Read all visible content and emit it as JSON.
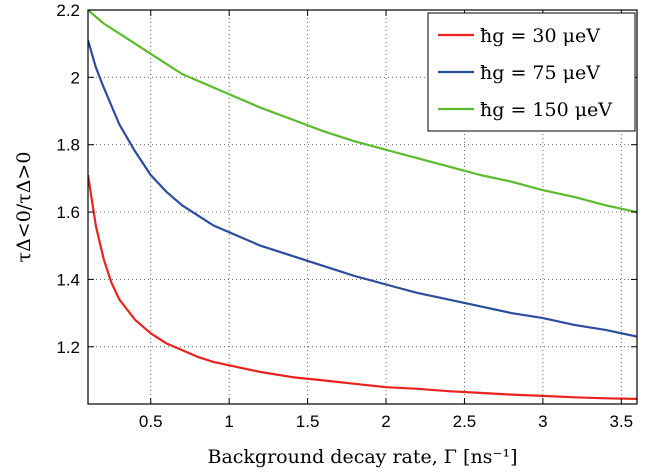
{
  "chart_data": {
    "type": "line",
    "title": "",
    "xlabel": "Background decay rate, Γ [ns⁻¹]",
    "ylabel": "τΔ<0/τΔ>0",
    "xlim": [
      0.1,
      3.6
    ],
    "ylim": [
      1.03,
      2.2
    ],
    "xticks": [
      0.5,
      1,
      1.5,
      2,
      2.5,
      3,
      3.5
    ],
    "xtick_labels": [
      "0.5",
      "1",
      "1.5",
      "2",
      "2.5",
      "3",
      "3.5"
    ],
    "yticks": [
      1.2,
      1.4,
      1.6,
      1.8,
      2,
      2.2
    ],
    "ytick_labels": [
      "1.2",
      "1.4",
      "1.6",
      "1.8",
      "2",
      "2.2"
    ],
    "grid": true,
    "legend_position": "top-right",
    "series": [
      {
        "name": "ħg = 30 μeV",
        "color": "#e8231f",
        "x": [
          0.1,
          0.15,
          0.2,
          0.25,
          0.3,
          0.4,
          0.5,
          0.6,
          0.7,
          0.8,
          0.9,
          1.0,
          1.2,
          1.4,
          1.6,
          1.8,
          2.0,
          2.2,
          2.4,
          2.6,
          2.8,
          3.0,
          3.2,
          3.4,
          3.6
        ],
        "y": [
          1.71,
          1.56,
          1.46,
          1.39,
          1.34,
          1.28,
          1.24,
          1.21,
          1.19,
          1.17,
          1.155,
          1.145,
          1.125,
          1.11,
          1.1,
          1.09,
          1.08,
          1.075,
          1.068,
          1.063,
          1.058,
          1.054,
          1.05,
          1.047,
          1.045
        ]
      },
      {
        "name": "ħg = 75 μeV",
        "color": "#2b4c9e",
        "x": [
          0.1,
          0.15,
          0.2,
          0.3,
          0.4,
          0.5,
          0.6,
          0.7,
          0.8,
          0.9,
          1.0,
          1.2,
          1.4,
          1.6,
          1.8,
          2.0,
          2.2,
          2.4,
          2.6,
          2.8,
          3.0,
          3.2,
          3.4,
          3.6
        ],
        "y": [
          2.11,
          2.03,
          1.97,
          1.86,
          1.78,
          1.71,
          1.66,
          1.62,
          1.59,
          1.56,
          1.54,
          1.5,
          1.47,
          1.44,
          1.41,
          1.385,
          1.36,
          1.34,
          1.32,
          1.3,
          1.285,
          1.265,
          1.25,
          1.23
        ]
      },
      {
        "name": "ħg = 150 μeV",
        "color": "#5cbb2c",
        "x": [
          0.1,
          0.2,
          0.3,
          0.4,
          0.5,
          0.6,
          0.7,
          0.8,
          0.9,
          1.0,
          1.2,
          1.4,
          1.6,
          1.8,
          2.0,
          2.2,
          2.4,
          2.6,
          2.8,
          3.0,
          3.2,
          3.4,
          3.6
        ],
        "y": [
          2.2,
          2.16,
          2.13,
          2.1,
          2.07,
          2.04,
          2.01,
          1.99,
          1.97,
          1.95,
          1.91,
          1.875,
          1.84,
          1.81,
          1.785,
          1.76,
          1.735,
          1.71,
          1.69,
          1.665,
          1.645,
          1.62,
          1.6
        ]
      }
    ]
  }
}
